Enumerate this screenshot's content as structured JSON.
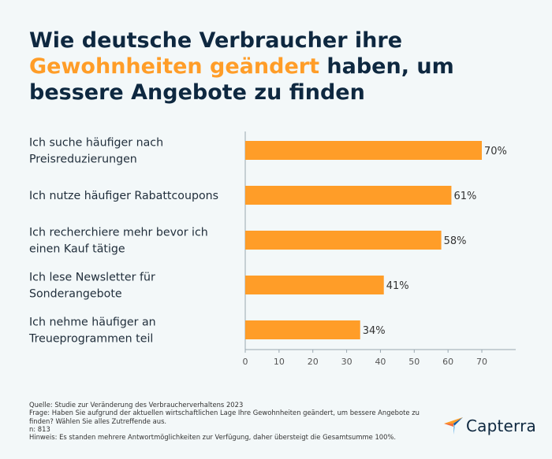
{
  "title": {
    "part1": "Wie deutsche Verbraucher ihre",
    "highlight": "Gewohnheiten geändert",
    "part2": "haben, um bessere Angebote zu finden"
  },
  "colors": {
    "bar": "#ff9d28",
    "title": "#0e2840",
    "background": "#f3f8f9",
    "axis": "#9aa7b0"
  },
  "chart_data": {
    "type": "bar",
    "orientation": "horizontal",
    "categories": [
      [
        "Ich suche häufiger nach",
        "Preisreduzierungen"
      ],
      [
        "Ich nutze häufiger Rabattcoupons"
      ],
      [
        "Ich recherchiere mehr bevor ich",
        "einen Kauf tätige"
      ],
      [
        "Ich lese Newsletter für",
        "Sonderangebote"
      ],
      [
        "Ich nehme häufiger an",
        "Treueprogrammen teil"
      ]
    ],
    "values": [
      70,
      61,
      58,
      41,
      34
    ],
    "value_labels": [
      "70%",
      "61%",
      "58%",
      "41%",
      "34%"
    ],
    "xlim": [
      0,
      80
    ],
    "xticks": [
      "0",
      "10",
      "20",
      "30",
      "40",
      "50",
      "60",
      "70"
    ],
    "grid": false
  },
  "footer": {
    "source": "Quelle: Studie zur Veränderung des Verbraucherverhaltens 2023",
    "question_line1": "Frage: Haben Sie aufgrund der aktuellen wirtschaftlichen Lage Ihre Gewohnheiten geändert, um bessere Angebote zu",
    "question_line2": "finden? Wählen Sie alles Zutreffende aus.",
    "n": "n: 813",
    "note": "Hinweis: Es standen mehrere Antwortmöglichkeiten zur Verfügung, daher übersteigt die Gesamtsumme 100%."
  },
  "logo": {
    "text": "Capterra",
    "icon": "capterra-arrow-icon"
  }
}
